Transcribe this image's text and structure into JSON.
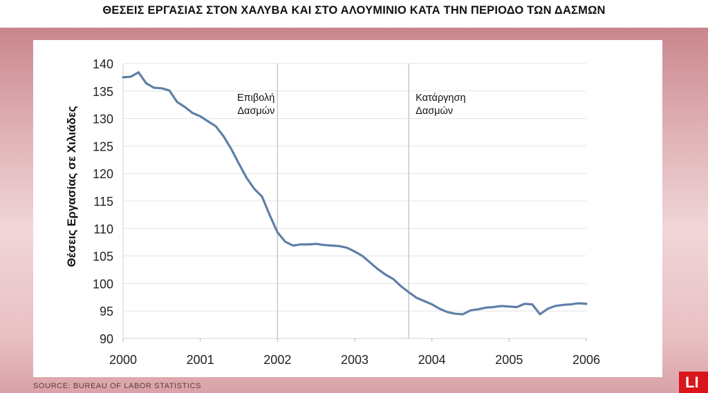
{
  "title": "ΘΕΣΕΙΣ ΕΡΓΑΣΙΑΣ ΣΤΟΝ ΧΑΛΥΒΑ ΚΑΙ ΣΤΟ ΑΛΟΥΜΙΝΙΟ ΚΑΤΑ ΤΗΝ ΠΕΡΙΟΔΟ ΤΩΝ ΔΑΣΜΩΝ",
  "source": "SOURCE: BUREAU OF LABOR STATISTICS",
  "logo_text": "LI",
  "colors": {
    "line": "#5f7fa6",
    "accent": "#d8161c"
  },
  "chart_data": {
    "type": "line",
    "ylabel": "Θέσεις Εργασίας σε Χιλιάδες",
    "xlabel": "",
    "xlim": [
      2000,
      2006
    ],
    "ylim": [
      90,
      140
    ],
    "x_ticks": [
      "2000",
      "2001",
      "2002",
      "2003",
      "2004",
      "2005",
      "2006"
    ],
    "y_ticks": [
      "90",
      "95",
      "100",
      "105",
      "110",
      "115",
      "120",
      "125",
      "130",
      "135",
      "140"
    ],
    "grid": "horizontal",
    "annotations": [
      {
        "x": 2002.0,
        "lines": [
          "Επιβολή",
          "Δασμών"
        ]
      },
      {
        "x": 2003.7,
        "lines": [
          "Κατάργηση",
          "Δασμών"
        ]
      }
    ],
    "series": [
      {
        "x": [
          2000.0,
          2000.1,
          2000.2,
          2000.3,
          2000.4,
          2000.5,
          2000.6,
          2000.7,
          2000.8,
          2000.9,
          2001.0,
          2001.1,
          2001.2,
          2001.3,
          2001.4,
          2001.5,
          2001.6,
          2001.7,
          2001.8,
          2001.9,
          2002.0,
          2002.1,
          2002.2,
          2002.3,
          2002.4,
          2002.5,
          2002.6,
          2002.7,
          2002.8,
          2002.9,
          2003.0,
          2003.1,
          2003.2,
          2003.3,
          2003.4,
          2003.5,
          2003.6,
          2003.7,
          2003.8,
          2003.9,
          2004.0,
          2004.1,
          2004.2,
          2004.3,
          2004.4,
          2004.5,
          2004.6,
          2004.7,
          2004.8,
          2004.9,
          2005.0,
          2005.1,
          2005.2,
          2005.3,
          2005.4,
          2005.5,
          2005.6,
          2005.7,
          2005.8,
          2005.9,
          2006.0
        ],
        "values": [
          137.5,
          137.6,
          138.4,
          136.4,
          135.6,
          135.5,
          135.1,
          133.0,
          132.1,
          131.0,
          130.4,
          129.5,
          128.6,
          126.8,
          124.5,
          121.8,
          119.2,
          117.2,
          115.8,
          112.4,
          109.3,
          107.6,
          106.9,
          107.1,
          107.1,
          107.2,
          107.0,
          106.9,
          106.8,
          106.5,
          105.8,
          105.0,
          103.8,
          102.6,
          101.6,
          100.8,
          99.5,
          98.4,
          97.4,
          96.8,
          96.2,
          95.4,
          94.8,
          94.5,
          94.4,
          95.1,
          95.3,
          95.6,
          95.7,
          95.9,
          95.8,
          95.7,
          96.3,
          96.2,
          94.4,
          95.4,
          95.9,
          96.1,
          96.2,
          96.4,
          96.3
        ]
      }
    ]
  }
}
